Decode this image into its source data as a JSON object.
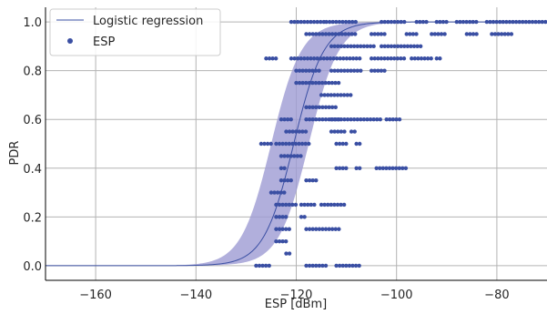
{
  "colors": {
    "line": "#3a4fa3",
    "band": "#9d9bd3",
    "points": "#3a4fa3",
    "grid": "#b3b3b3",
    "axis": "#000000"
  },
  "chart_data": {
    "type": "scatter",
    "title": "",
    "xlabel": "ESP [dBm]",
    "ylabel": "PDR",
    "xlim": [
      -170,
      -70
    ],
    "ylim": [
      -0.06,
      1.06
    ],
    "xticks": [
      -160,
      -140,
      -120,
      -100,
      -80
    ],
    "yticks": [
      0.0,
      0.2,
      0.4,
      0.6,
      0.8,
      1.0
    ],
    "xtick_labels": [
      "−160",
      "−140",
      "−120",
      "−100",
      "−80"
    ],
    "ytick_labels": [
      "0.0",
      "0.2",
      "0.4",
      "0.6",
      "0.8",
      "1.0"
    ],
    "grid": true,
    "legend": {
      "placement": "top-left",
      "entries": [
        "Logistic regression",
        "ESP"
      ]
    },
    "logistic_regression": {
      "name": "Logistic regression",
      "midpoint": -120.5,
      "scale": 3.0,
      "band_lower_midpoint": -117.5,
      "band_upper_midpoint": -125.0,
      "band_scale": 3.0
    },
    "esp_points": {
      "name": "ESP",
      "rows": [
        {
          "y": 1.0,
          "segments": [
            [
              -114,
              -108
            ]
          ]
        },
        {
          "y": 1.0,
          "segments": [
            [
              -121,
              -114
            ],
            [
              -103,
              -98
            ],
            [
              -96,
              -94
            ],
            [
              -92,
              -90
            ],
            [
              -88,
              -84
            ],
            [
              -82,
              -70
            ]
          ]
        },
        {
          "y": 0.95,
          "segments": [
            [
              -118,
              -108
            ],
            [
              -105,
              -102
            ],
            [
              -98,
              -96
            ],
            [
              -93,
              -90
            ],
            [
              -86,
              -84
            ],
            [
              -81,
              -77
            ]
          ]
        },
        {
          "y": 0.9,
          "segments": [
            [
              -113,
              -104
            ],
            [
              -103,
              -95
            ]
          ]
        },
        {
          "y": 0.85,
          "segments": [
            [
              -126,
              -124
            ],
            [
              -121,
              -107
            ],
            [
              -105,
              -98
            ],
            [
              -97,
              -93
            ],
            [
              -92,
              -91
            ]
          ]
        },
        {
          "y": 0.8,
          "segments": [
            [
              -120,
              -115
            ],
            [
              -113,
              -107
            ],
            [
              -105,
              -102
            ]
          ]
        },
        {
          "y": 0.75,
          "segments": [
            [
              -120,
              -111
            ]
          ]
        },
        {
          "y": 0.7,
          "segments": [
            [
              -115,
              -109
            ]
          ]
        },
        {
          "y": 0.65,
          "segments": [
            [
              -118,
              -112
            ]
          ]
        },
        {
          "y": 0.6,
          "segments": [
            [
              -123,
              -121
            ],
            [
              -118,
              -111
            ],
            [
              -113,
              -103
            ],
            [
              -102,
              -99
            ]
          ]
        },
        {
          "y": 0.55,
          "segments": [
            [
              -122,
              -118
            ],
            [
              -113,
              -110
            ],
            [
              -109,
              -108
            ]
          ]
        },
        {
          "y": 0.5,
          "segments": [
            [
              -127,
              -125
            ],
            [
              -124,
              -117
            ],
            [
              -112,
              -110
            ],
            [
              -108,
              -107
            ]
          ]
        },
        {
          "y": 0.45,
          "segments": [
            [
              -123,
              -119
            ]
          ]
        },
        {
          "y": 0.4,
          "segments": [
            [
              -123,
              -122
            ],
            [
              -112,
              -110
            ],
            [
              -108,
              -107
            ],
            [
              -104,
              -98
            ]
          ]
        },
        {
          "y": 0.35,
          "segments": [
            [
              -123,
              -121
            ],
            [
              -118,
              -116
            ]
          ]
        },
        {
          "y": 0.3,
          "segments": [
            [
              -125,
              -122
            ]
          ]
        },
        {
          "y": 0.25,
          "segments": [
            [
              -124,
              -120
            ],
            [
              -119,
              -116
            ],
            [
              -115,
              -110
            ]
          ]
        },
        {
          "y": 0.2,
          "segments": [
            [
              -124,
              -122
            ],
            [
              -119,
              -118
            ]
          ]
        },
        {
          "y": 0.15,
          "segments": [
            [
              -124,
              -121
            ],
            [
              -118,
              -111
            ]
          ]
        },
        {
          "y": 0.1,
          "segments": [
            [
              -124,
              -122
            ]
          ]
        },
        {
          "y": 0.05,
          "segments": [
            [
              -122,
              -121
            ]
          ]
        },
        {
          "y": 0.0,
          "segments": [
            [
              -128,
              -125
            ],
            [
              -118,
              -114
            ],
            [
              -112,
              -107
            ]
          ]
        }
      ]
    }
  }
}
